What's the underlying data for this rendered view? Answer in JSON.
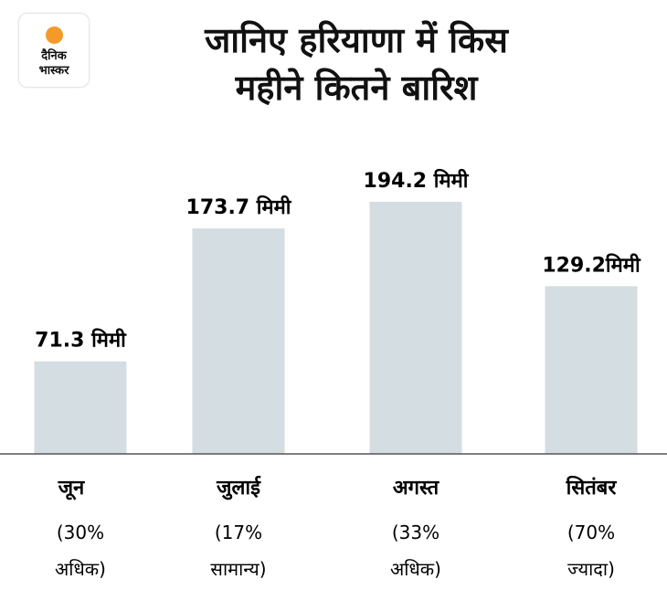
{
  "logo": {
    "line1": "दैनिक",
    "line2": "भास्कर",
    "sun_color": "#f39a2b"
  },
  "chart_data": {
    "type": "bar",
    "title_line1": "जानिए हरियाणा में किस",
    "title_line2": "महीने कितने बारिश",
    "categories": [
      "जून",
      "जुलाई",
      "अगस्त",
      "सितंबर"
    ],
    "values": [
      71.3,
      173.7,
      194.2,
      129.2
    ],
    "value_labels": [
      "71.3 मिमी",
      "173.7 मिमी",
      "194.2 मिमी",
      "129.2मिमी"
    ],
    "notes_line1": [
      "(30%",
      "(17%",
      "(33%",
      "(70%"
    ],
    "notes_line2": [
      "अधिक)",
      "सामान्य)",
      "अधिक)",
      "ज्यादा)"
    ],
    "unit": "मिमी",
    "ylim": [
      0,
      200
    ],
    "grid": false,
    "bar_color": "#d3dde2"
  }
}
